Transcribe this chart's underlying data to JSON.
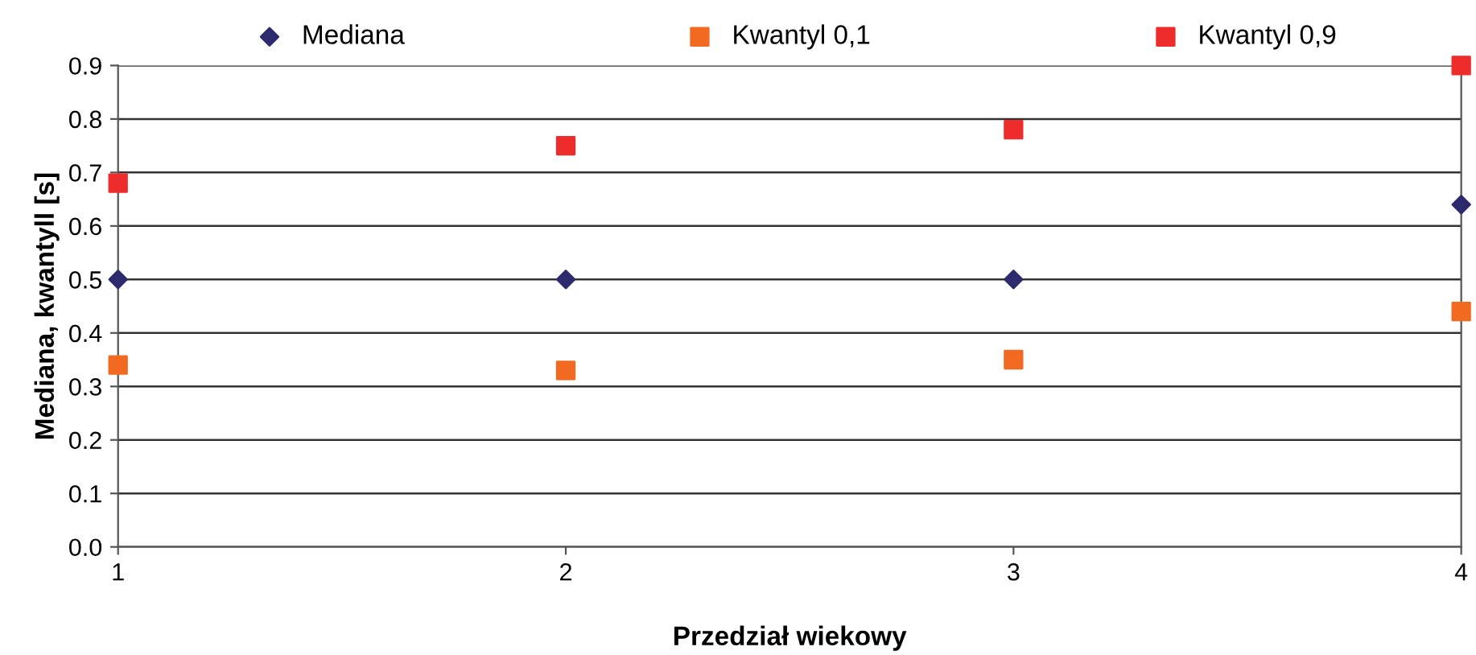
{
  "chart_data": {
    "type": "scatter",
    "xlabel": "Przedział wiekowy",
    "ylabel": "Mediana, kwantyll [s]",
    "x": [
      1,
      2,
      3,
      4
    ],
    "series": [
      {
        "name": "Mediana",
        "color": "#2e2a6e",
        "marker": "diamond",
        "values": [
          0.5,
          0.5,
          0.5,
          0.64
        ]
      },
      {
        "name": "Kwantyl 0,1",
        "color": "#f26a21",
        "marker": "square",
        "values": [
          0.34,
          0.33,
          0.35,
          0.44
        ]
      },
      {
        "name": "Kwantyl 0,9",
        "color": "#ee2c2c",
        "marker": "square",
        "values": [
          0.68,
          0.75,
          0.78,
          0.9
        ]
      }
    ],
    "xlim": [
      1,
      4
    ],
    "xticks": [
      1,
      2,
      3,
      4
    ],
    "ylim": [
      0,
      0.9
    ],
    "yticks": [
      {
        "value": 0,
        "label": "0.0"
      },
      0.1,
      0.2,
      0.3,
      0.4,
      0.5,
      0.6,
      0.7,
      0.8,
      0.9
    ],
    "grid": "y",
    "legend": "top"
  }
}
